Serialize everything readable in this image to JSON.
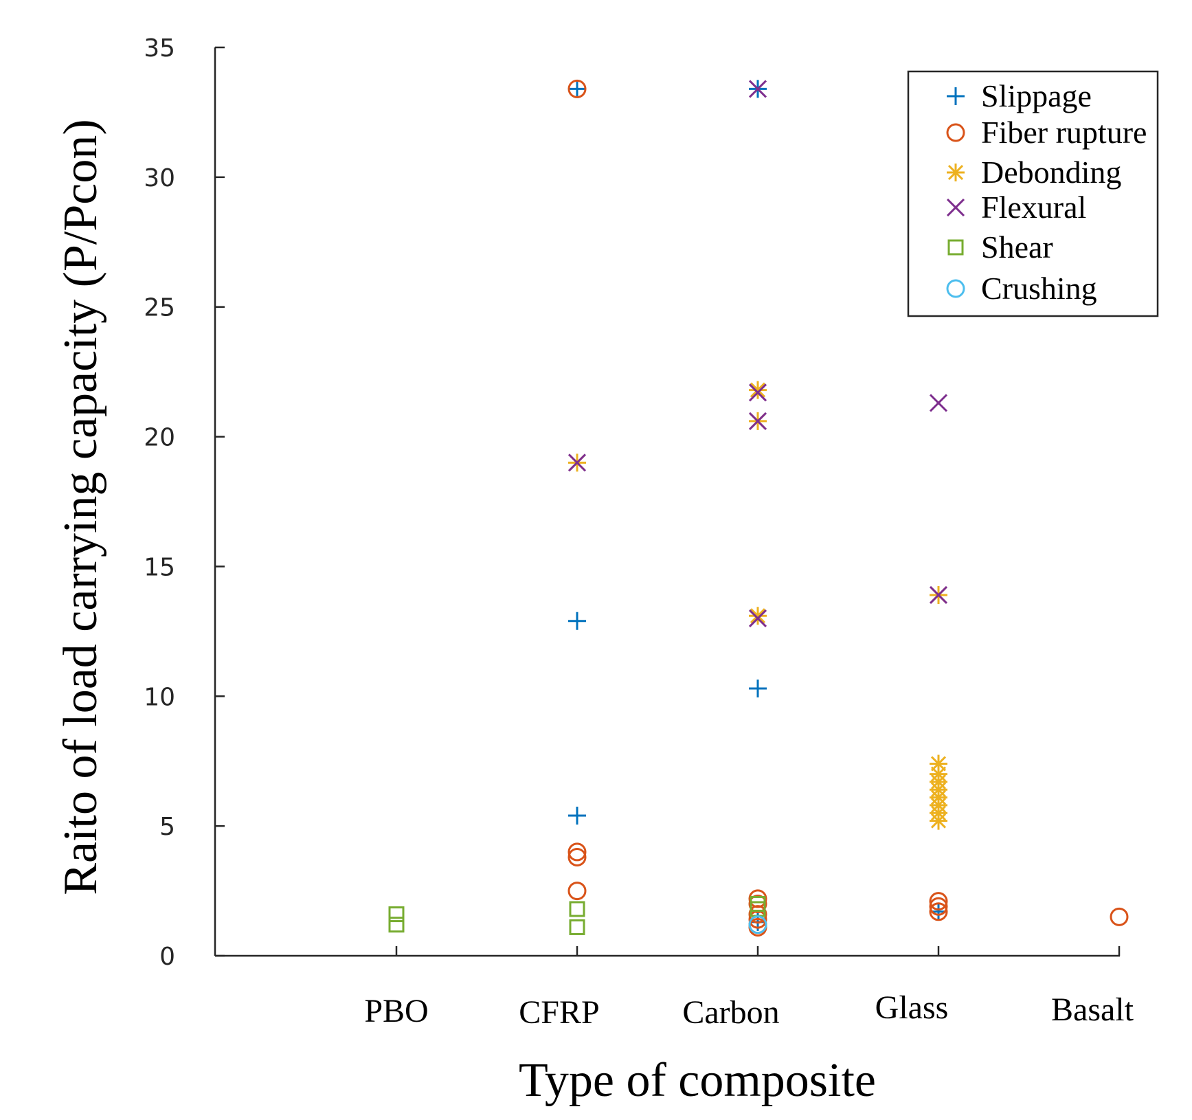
{
  "chart_data": {
    "type": "scatter",
    "title": "",
    "xlabel": "Type of composite",
    "ylabel": "Raito of load carrying capacity (P/Pcon)",
    "categories": [
      "PBO",
      "CFRP",
      "Carbon",
      "Glass",
      "Basalt"
    ],
    "ylim": [
      0,
      35
    ],
    "yticks": [
      0,
      5,
      10,
      15,
      20,
      25,
      30,
      35
    ],
    "legend_position": "top-right",
    "series": [
      {
        "name": "Slippage",
        "marker": "plus",
        "color": "#0072BD",
        "points": [
          {
            "cat": "CFRP",
            "y": 33.4
          },
          {
            "cat": "CFRP",
            "y": 12.9
          },
          {
            "cat": "CFRP",
            "y": 5.4
          },
          {
            "cat": "Carbon",
            "y": 33.4
          },
          {
            "cat": "Carbon",
            "y": 10.3
          },
          {
            "cat": "Carbon",
            "y": 1.3
          },
          {
            "cat": "Glass",
            "y": 1.7
          }
        ]
      },
      {
        "name": "Fiber rupture",
        "marker": "circle",
        "color": "#D95319",
        "points": [
          {
            "cat": "CFRP",
            "y": 33.4
          },
          {
            "cat": "CFRP",
            "y": 4.0
          },
          {
            "cat": "CFRP",
            "y": 3.8
          },
          {
            "cat": "CFRP",
            "y": 2.5
          },
          {
            "cat": "Carbon",
            "y": 2.2
          },
          {
            "cat": "Carbon",
            "y": 2.0
          },
          {
            "cat": "Carbon",
            "y": 1.6
          },
          {
            "cat": "Carbon",
            "y": 1.4
          },
          {
            "cat": "Carbon",
            "y": 1.2
          },
          {
            "cat": "Carbon",
            "y": 1.1
          },
          {
            "cat": "Glass",
            "y": 2.1
          },
          {
            "cat": "Glass",
            "y": 1.9
          },
          {
            "cat": "Glass",
            "y": 1.7
          },
          {
            "cat": "Basalt",
            "y": 1.5
          }
        ]
      },
      {
        "name": "Debonding",
        "marker": "asterisk",
        "color": "#EDB120",
        "points": [
          {
            "cat": "CFRP",
            "y": 19.0
          },
          {
            "cat": "Carbon",
            "y": 21.8
          },
          {
            "cat": "Carbon",
            "y": 20.6
          },
          {
            "cat": "Carbon",
            "y": 13.1
          },
          {
            "cat": "Glass",
            "y": 13.9
          },
          {
            "cat": "Glass",
            "y": 7.4
          },
          {
            "cat": "Glass",
            "y": 7.0
          },
          {
            "cat": "Glass",
            "y": 6.7
          },
          {
            "cat": "Glass",
            "y": 6.4
          },
          {
            "cat": "Glass",
            "y": 6.1
          },
          {
            "cat": "Glass",
            "y": 5.8
          },
          {
            "cat": "Glass",
            "y": 5.5
          },
          {
            "cat": "Glass",
            "y": 5.2
          }
        ]
      },
      {
        "name": "Flexural",
        "marker": "cross",
        "color": "#7E2F8E",
        "points": [
          {
            "cat": "CFRP",
            "y": 19.0
          },
          {
            "cat": "Carbon",
            "y": 33.4
          },
          {
            "cat": "Carbon",
            "y": 21.7
          },
          {
            "cat": "Carbon",
            "y": 20.6
          },
          {
            "cat": "Carbon",
            "y": 13.0
          },
          {
            "cat": "Glass",
            "y": 21.3
          },
          {
            "cat": "Glass",
            "y": 13.9
          }
        ]
      },
      {
        "name": "Shear",
        "marker": "square",
        "color": "#77AC30",
        "points": [
          {
            "cat": "PBO",
            "y": 1.6
          },
          {
            "cat": "PBO",
            "y": 1.2
          },
          {
            "cat": "CFRP",
            "y": 1.8
          },
          {
            "cat": "CFRP",
            "y": 1.1
          },
          {
            "cat": "Carbon",
            "y": 2.0
          },
          {
            "cat": "Carbon",
            "y": 1.8
          }
        ]
      },
      {
        "name": "Crushing",
        "marker": "circle",
        "color": "#4DBEEE",
        "points": [
          {
            "cat": "Carbon",
            "y": 1.2
          }
        ]
      }
    ]
  }
}
